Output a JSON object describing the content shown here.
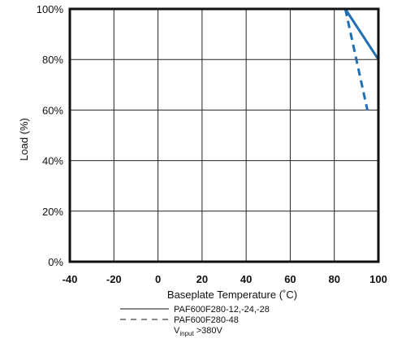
{
  "chart_data": {
    "type": "line",
    "title": "",
    "xlabel": "Baseplate Temperature (˚C)",
    "ylabel": "Load (%)",
    "xlim": [
      -40,
      100
    ],
    "ylim": [
      0,
      100
    ],
    "grid": true,
    "legend_placement": "bottom",
    "x_ticks": [
      -40,
      -20,
      0,
      20,
      40,
      60,
      80,
      100
    ],
    "x_tick_labels": [
      "-40",
      "-20",
      "0",
      "20",
      "40",
      "60",
      "80",
      "100"
    ],
    "y_ticks": [
      0,
      20,
      40,
      60,
      80,
      100
    ],
    "y_tick_labels": [
      "0%",
      "20%",
      "40%",
      "60%",
      "80%",
      "100%"
    ],
    "series": [
      {
        "name": "PAF600F280-12,-24,-28",
        "style": "solid",
        "color": "#1f6fb5",
        "points": [
          [
            -40,
            100
          ],
          [
            85,
            100
          ],
          [
            100,
            80
          ],
          [
            100,
            0
          ]
        ]
      },
      {
        "name": "PAF600F280-48",
        "style": "dashed",
        "color": "#1f6fb5",
        "points": [
          [
            85,
            100
          ],
          [
            95,
            60
          ]
        ]
      }
    ],
    "legend_note_main": "V",
    "legend_note_sub": "input",
    "legend_note_rest": " >380V"
  }
}
